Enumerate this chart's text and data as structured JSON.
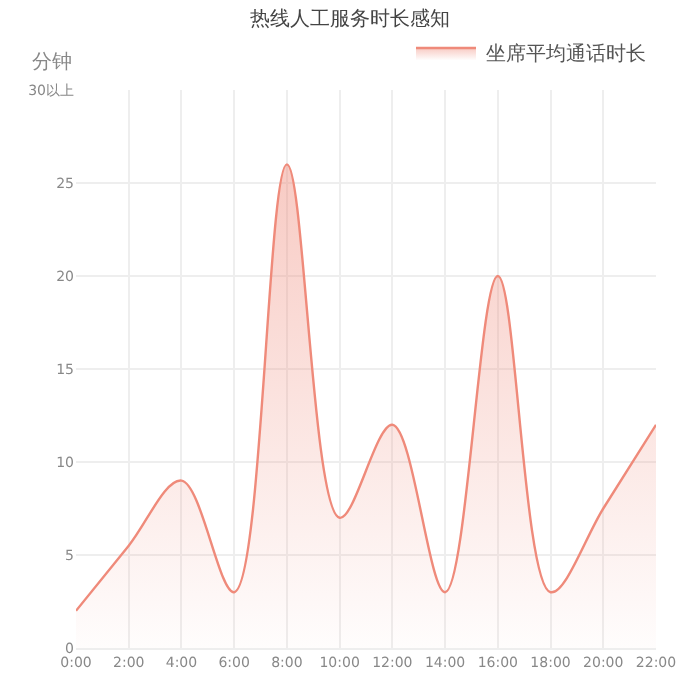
{
  "chart_data": {
    "type": "area",
    "title": "热线人工服务时长感知",
    "ylabel": "分钟",
    "categories": [
      "0:00",
      "2:00",
      "4:00",
      "6:00",
      "8:00",
      "10:00",
      "12:00",
      "14:00",
      "16:00",
      "18:00",
      "20:00",
      "22:00"
    ],
    "series": [
      {
        "name": "坐席平均通话时长",
        "color": "#ef8a7a",
        "values": [
          2,
          5.5,
          9,
          3,
          26,
          7,
          12,
          3,
          20,
          3,
          7.5,
          12
        ]
      }
    ],
    "ylim": [
      0,
      30
    ],
    "yticks": [
      0,
      5,
      10,
      15,
      20,
      25,
      {
        "value": 30,
        "label": "30以上"
      }
    ],
    "grid": true,
    "legend": "top right",
    "marker": "none",
    "line_style": "solid"
  }
}
